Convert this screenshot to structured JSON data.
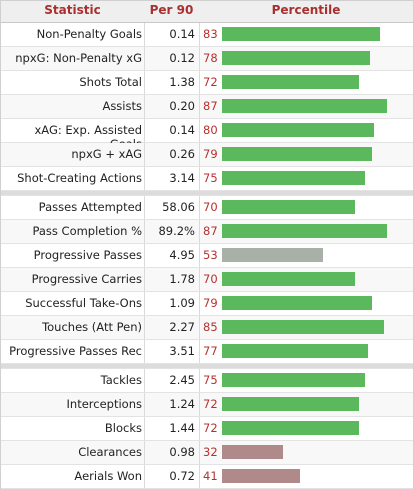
{
  "header": {
    "statistic": "Statistic",
    "per90": "Per 90",
    "percentile": "Percentile"
  },
  "colors": {
    "green": "#5cb85c",
    "grey": "#a8b0a8",
    "red": "#b0898a"
  },
  "groups": [
    {
      "rows": [
        {
          "stat": "Non-Penalty Goals",
          "per90": "0.14",
          "pct": 83,
          "color": "green"
        },
        {
          "stat": "npxG: Non-Penalty xG",
          "per90": "0.12",
          "pct": 78,
          "color": "green"
        },
        {
          "stat": "Shots Total",
          "per90": "1.38",
          "pct": 72,
          "color": "green"
        },
        {
          "stat": "Assists",
          "per90": "0.20",
          "pct": 87,
          "color": "green"
        },
        {
          "stat": "xAG: Exp. Assisted Goals",
          "per90": "0.14",
          "pct": 80,
          "color": "green"
        },
        {
          "stat": "npxG + xAG",
          "per90": "0.26",
          "pct": 79,
          "color": "green"
        },
        {
          "stat": "Shot-Creating Actions",
          "per90": "3.14",
          "pct": 75,
          "color": "green"
        }
      ]
    },
    {
      "rows": [
        {
          "stat": "Passes Attempted",
          "per90": "58.06",
          "pct": 70,
          "color": "green"
        },
        {
          "stat": "Pass Completion %",
          "per90": "89.2%",
          "pct": 87,
          "color": "green"
        },
        {
          "stat": "Progressive Passes",
          "per90": "4.95",
          "pct": 53,
          "color": "grey"
        },
        {
          "stat": "Progressive Carries",
          "per90": "1.78",
          "pct": 70,
          "color": "green"
        },
        {
          "stat": "Successful Take-Ons",
          "per90": "1.09",
          "pct": 79,
          "color": "green"
        },
        {
          "stat": "Touches (Att Pen)",
          "per90": "2.27",
          "pct": 85,
          "color": "green"
        },
        {
          "stat": "Progressive Passes Rec",
          "per90": "3.51",
          "pct": 77,
          "color": "green"
        }
      ]
    },
    {
      "rows": [
        {
          "stat": "Tackles",
          "per90": "2.45",
          "pct": 75,
          "color": "green"
        },
        {
          "stat": "Interceptions",
          "per90": "1.24",
          "pct": 72,
          "color": "green"
        },
        {
          "stat": "Blocks",
          "per90": "1.44",
          "pct": 72,
          "color": "green"
        },
        {
          "stat": "Clearances",
          "per90": "0.98",
          "pct": 32,
          "color": "red"
        },
        {
          "stat": "Aerials Won",
          "per90": "0.72",
          "pct": 41,
          "color": "red"
        }
      ]
    }
  ]
}
